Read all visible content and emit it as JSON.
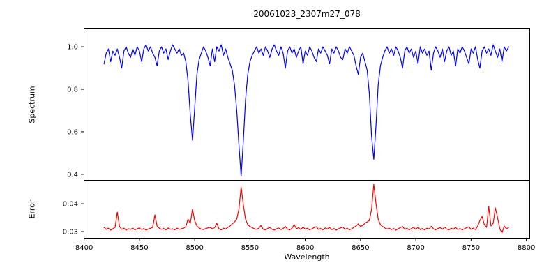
{
  "figure": {
    "background": "#ffffff",
    "frame_color": "#000000",
    "tick_color": "#000000"
  },
  "chart_data": [
    {
      "type": "line",
      "name": "spectrum",
      "title": "20061023_2307m27_078",
      "ylabel": "Spectrum",
      "color": "#0000ff",
      "xlim": [
        8399.6,
        8803.4
      ],
      "ylim": [
        0.37,
        1.089
      ],
      "yticks": [
        0.4,
        0.6,
        0.8,
        1.0
      ],
      "ytick_labels": [
        "0.4",
        "0.6",
        "0.8",
        "1.0"
      ],
      "grid": false,
      "legend": null,
      "x_start": 8418,
      "x_step": 2,
      "values": [
        0.92,
        0.97,
        0.99,
        0.93,
        0.98,
        0.96,
        0.99,
        0.95,
        0.9,
        0.98,
        1.0,
        0.97,
        0.95,
        0.99,
        0.96,
        1.0,
        0.98,
        0.93,
        0.99,
        1.01,
        0.98,
        1.0,
        0.97,
        0.95,
        0.91,
        0.98,
        1.0,
        0.97,
        0.99,
        0.94,
        0.98,
        1.01,
        0.99,
        0.97,
        0.99,
        0.96,
        0.97,
        0.93,
        0.84,
        0.68,
        0.56,
        0.71,
        0.87,
        0.94,
        0.97,
        1.0,
        0.98,
        0.95,
        0.91,
        0.99,
        0.93,
        1.0,
        0.98,
        1.01,
        0.96,
        0.99,
        0.95,
        0.92,
        0.89,
        0.82,
        0.7,
        0.54,
        0.39,
        0.56,
        0.75,
        0.87,
        0.93,
        0.96,
        0.98,
        1.0,
        0.97,
        0.99,
        0.96,
        1.0,
        0.98,
        0.95,
        0.99,
        1.01,
        0.98,
        0.96,
        1.0,
        0.97,
        0.9,
        0.98,
        1.0,
        0.97,
        0.99,
        0.95,
        0.98,
        1.0,
        0.92,
        0.98,
        0.96,
        1.0,
        0.98,
        0.95,
        0.93,
        0.99,
        0.97,
        1.0,
        0.98,
        0.96,
        0.92,
        0.99,
        0.97,
        1.0,
        0.98,
        0.95,
        0.94,
        0.99,
        0.97,
        1.0,
        0.98,
        0.96,
        0.91,
        0.87,
        0.95,
        0.97,
        0.93,
        0.89,
        0.78,
        0.58,
        0.47,
        0.63,
        0.82,
        0.91,
        0.95,
        0.98,
        1.0,
        0.97,
        0.99,
        0.96,
        1.0,
        0.98,
        0.95,
        0.9,
        0.98,
        1.0,
        0.97,
        0.99,
        0.95,
        0.98,
        0.92,
        1.0,
        0.97,
        0.99,
        0.96,
        0.98,
        0.89,
        0.97,
        1.0,
        0.98,
        0.95,
        0.99,
        0.93,
        0.98,
        1.0,
        0.96,
        0.98,
        0.91,
        0.99,
        0.97,
        1.0,
        0.98,
        0.95,
        0.92,
        0.99,
        0.97,
        1.0,
        0.94,
        0.9,
        0.98,
        1.0,
        0.97,
        0.99,
        0.96,
        1.01,
        0.98,
        0.95,
        0.99,
        0.93,
        1.0,
        0.98,
        1.0
      ]
    },
    {
      "type": "line",
      "name": "error",
      "ylabel": "Error",
      "xlabel": "Wavelength",
      "color": "#ff0000",
      "xlim": [
        8399.6,
        8803.4
      ],
      "ylim": [
        0.0275,
        0.0483
      ],
      "yticks": [
        0.03,
        0.04
      ],
      "ytick_labels": [
        "0.03",
        "0.04"
      ],
      "xticks": [
        8400,
        8450,
        8500,
        8550,
        8600,
        8650,
        8700,
        8750,
        8800
      ],
      "xtick_labels": [
        "8400",
        "8450",
        "8500",
        "8550",
        "8600",
        "8650",
        "8700",
        "8750",
        "8800"
      ],
      "grid": false,
      "legend": null,
      "x_start": 8418,
      "x_step": 2,
      "values": [
        0.0315,
        0.0308,
        0.0312,
        0.0305,
        0.031,
        0.0315,
        0.037,
        0.0318,
        0.0308,
        0.0312,
        0.0305,
        0.031,
        0.0308,
        0.0312,
        0.0306,
        0.031,
        0.0313,
        0.0307,
        0.0311,
        0.0305,
        0.0309,
        0.0312,
        0.0315,
        0.036,
        0.032,
        0.0312,
        0.0308,
        0.0311,
        0.0306,
        0.0313,
        0.0308,
        0.031,
        0.0306,
        0.0312,
        0.0308,
        0.031,
        0.0312,
        0.0318,
        0.0345,
        0.033,
        0.038,
        0.034,
        0.032,
        0.0313,
        0.0309,
        0.0307,
        0.0311,
        0.0313,
        0.0315,
        0.031,
        0.0314,
        0.033,
        0.031,
        0.0306,
        0.0312,
        0.0309,
        0.0315,
        0.032,
        0.0328,
        0.0335,
        0.0345,
        0.038,
        0.046,
        0.0395,
        0.0345,
        0.0325,
        0.0318,
        0.0314,
        0.031,
        0.0308,
        0.0312,
        0.0322,
        0.0308,
        0.0306,
        0.0311,
        0.0315,
        0.0308,
        0.0305,
        0.031,
        0.0313,
        0.0307,
        0.0311,
        0.0318,
        0.0309,
        0.0306,
        0.0312,
        0.0325,
        0.031,
        0.0314,
        0.0307,
        0.0316,
        0.0309,
        0.0312,
        0.0306,
        0.031,
        0.0314,
        0.0317,
        0.0308,
        0.0311,
        0.0306,
        0.0313,
        0.0309,
        0.0315,
        0.0307,
        0.0311,
        0.0305,
        0.031,
        0.0313,
        0.0316,
        0.0308,
        0.0312,
        0.0306,
        0.031,
        0.0315,
        0.032,
        0.0328,
        0.0318,
        0.0322,
        0.033,
        0.0335,
        0.034,
        0.038,
        0.047,
        0.04,
        0.0345,
        0.0325,
        0.0318,
        0.0313,
        0.0309,
        0.0312,
        0.0307,
        0.0311,
        0.0305,
        0.031,
        0.0314,
        0.0318,
        0.0308,
        0.0312,
        0.0306,
        0.0311,
        0.0315,
        0.0308,
        0.0316,
        0.0307,
        0.0311,
        0.0306,
        0.0312,
        0.0309,
        0.0319,
        0.031,
        0.0306,
        0.0311,
        0.0314,
        0.0308,
        0.0316,
        0.0309,
        0.0306,
        0.0312,
        0.0308,
        0.0315,
        0.0307,
        0.0311,
        0.0306,
        0.031,
        0.0314,
        0.0317,
        0.0308,
        0.0312,
        0.0307,
        0.032,
        0.034,
        0.0355,
        0.0325,
        0.0315,
        0.039,
        0.032,
        0.033,
        0.0385,
        0.035,
        0.031,
        0.0295,
        0.032,
        0.031,
        0.0315
      ]
    }
  ]
}
